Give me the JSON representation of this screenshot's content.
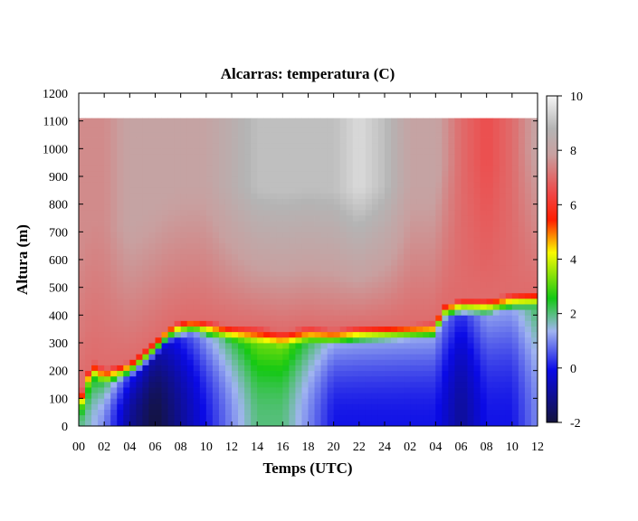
{
  "chart_data": {
    "type": "heatmap",
    "title": "Alcarras: temperatura (C)",
    "xlabel": "Temps (UTC)",
    "ylabel": "Altura (m)",
    "x_tick_labels": [
      "00",
      "02",
      "04",
      "06",
      "08",
      "10",
      "12",
      "14",
      "16",
      "18",
      "20",
      "22",
      "24",
      "02",
      "04",
      "06",
      "08",
      "10",
      "12"
    ],
    "x_range_hours": [
      0,
      36
    ],
    "y_ticks": [
      0,
      100,
      200,
      300,
      400,
      500,
      600,
      700,
      800,
      900,
      1000,
      1100,
      1200
    ],
    "ylim": [
      0,
      1200
    ],
    "data_top_m": 1110,
    "colorbar": {
      "ticks": [
        -2,
        0,
        2,
        4,
        6,
        8,
        10
      ],
      "range": [
        -2,
        10
      ],
      "colors": [
        "#14143c",
        "#0a0ae6",
        "#a0b4f0",
        "#14c814",
        "#fafa00",
        "#ff1e00",
        "#f04646",
        "#c8a0a0",
        "#b4b4b4",
        "#f5f5f5"
      ]
    },
    "series": [
      {
        "name": "inversion_top_m",
        "x": [
          0,
          1,
          2,
          3,
          4,
          5,
          6,
          7,
          8,
          9,
          10,
          12,
          14,
          16,
          18,
          20,
          22,
          24,
          26,
          28,
          28.5,
          30,
          32,
          34,
          36
        ],
        "values": [
          40,
          180,
          150,
          160,
          175,
          210,
          250,
          300,
          320,
          330,
          320,
          305,
          300,
          285,
          300,
          290,
          300,
          305,
          310,
          315,
          380,
          400,
          400,
          420,
          430
        ]
      },
      {
        "name": "surface_temperature_C",
        "x": [
          0,
          2,
          4,
          6,
          8,
          10,
          12,
          14,
          16,
          18,
          20,
          22,
          24,
          26,
          28,
          30,
          32,
          34,
          36
        ],
        "values": [
          2,
          1,
          -1,
          -2,
          -1,
          0,
          1,
          2,
          2,
          1,
          0,
          0,
          0,
          0,
          0,
          -1,
          0,
          0,
          1
        ]
      },
      {
        "name": "top_temperature_C",
        "x": [
          0,
          2,
          4,
          6,
          8,
          10,
          12,
          14,
          16,
          18,
          20,
          22,
          24,
          26,
          28,
          30,
          32,
          34,
          36
        ],
        "values": [
          7.5,
          7.5,
          8,
          8,
          8,
          8,
          8.5,
          9,
          9,
          9,
          9,
          9.5,
          9,
          8,
          8,
          7,
          6.5,
          7,
          8
        ]
      }
    ],
    "grid": false,
    "legend": "colorbar-right"
  }
}
